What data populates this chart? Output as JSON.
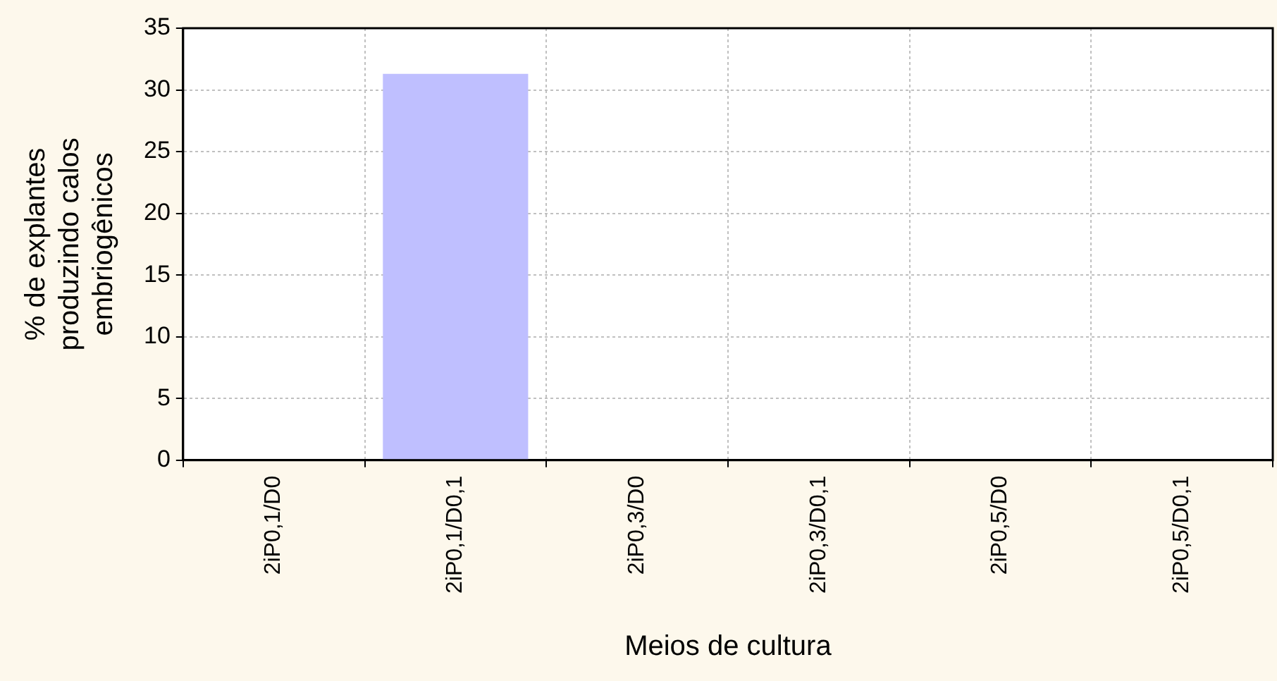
{
  "chart_data": {
    "type": "bar",
    "xlabel": "Meios de cultura",
    "ylabel": "% de explantes produzindo calos embriogênicos",
    "categories": [
      "2iP0,1/D0",
      "2iP0,1/D0,1",
      "2iP0,3/D0",
      "2iP0,3/D0,1",
      "2iP0,5/D0",
      "2iP0,5/D0,1"
    ],
    "values": [
      0,
      31.3,
      0,
      0,
      0,
      0
    ],
    "color": "#bfbfff",
    "ylim": [
      0,
      35
    ],
    "yticks": [
      0,
      5,
      10,
      15,
      20,
      25,
      30,
      35
    ],
    "grid": true,
    "legend": false
  }
}
